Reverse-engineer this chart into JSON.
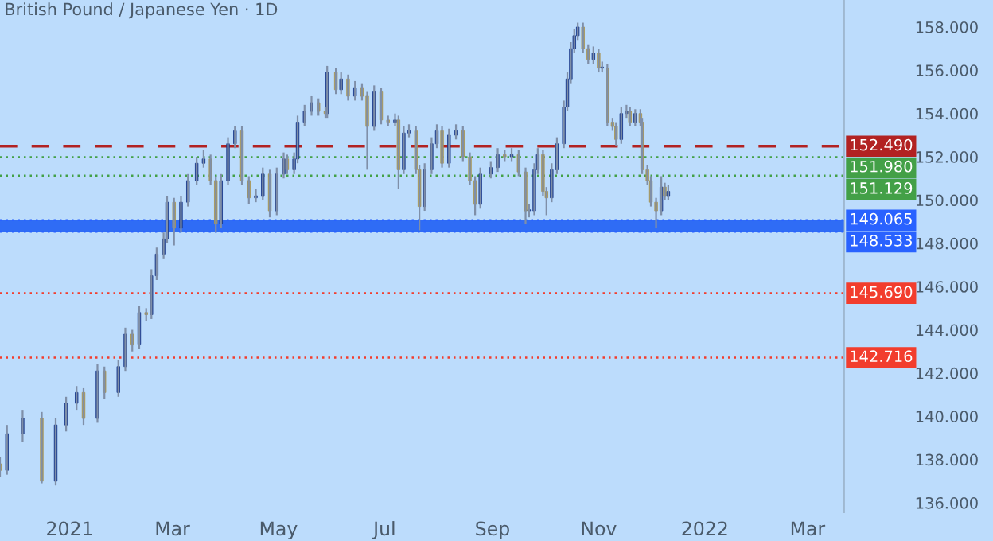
{
  "chart_data": {
    "type": "candlestick",
    "title": "British Pound / Japanese Yen · 1D",
    "x": [
      "2020-11-22",
      "2020-11-26",
      "2020-12-05",
      "2020-12-16",
      "2020-12-24",
      "2020-12-30",
      "2021-01-05",
      "2021-01-09",
      "2021-01-17",
      "2021-01-21",
      "2021-01-29",
      "2021-02-02",
      "2021-02-06",
      "2021-02-10",
      "2021-02-14",
      "2021-02-17",
      "2021-02-20",
      "2021-02-24",
      "2021-02-26",
      "2021-03-02",
      "2021-03-06",
      "2021-03-10",
      "2021-03-15",
      "2021-03-19",
      "2021-03-23",
      "2021-03-26",
      "2021-03-29",
      "2021-04-02",
      "2021-04-06",
      "2021-04-10",
      "2021-04-14",
      "2021-04-18",
      "2021-04-22",
      "2021-04-26",
      "2021-04-30",
      "2021-05-04",
      "2021-05-06",
      "2021-05-10",
      "2021-05-12",
      "2021-05-16",
      "2021-05-20",
      "2021-05-24",
      "2021-05-28",
      "2021-05-29",
      "2021-06-03",
      "2021-06-06",
      "2021-06-10",
      "2021-06-14",
      "2021-06-18",
      "2021-06-21",
      "2021-06-25",
      "2021-06-29",
      "2021-07-03",
      "2021-07-07",
      "2021-07-09",
      "2021-07-12",
      "2021-07-15",
      "2021-07-19",
      "2021-07-21",
      "2021-07-24",
      "2021-07-28",
      "2021-07-31",
      "2021-08-03",
      "2021-08-07",
      "2021-08-11",
      "2021-08-15",
      "2021-08-19",
      "2021-08-22",
      "2021-08-25",
      "2021-08-31",
      "2021-09-04",
      "2021-09-08",
      "2021-09-12",
      "2021-09-16",
      "2021-09-20",
      "2021-09-22",
      "2021-09-25",
      "2021-09-27",
      "2021-09-30",
      "2021-10-02",
      "2021-10-05",
      "2021-10-08",
      "2021-10-12",
      "2021-10-14",
      "2021-10-16",
      "2021-10-18",
      "2021-10-20",
      "2021-10-23",
      "2021-10-26",
      "2021-10-29",
      "2021-11-01",
      "2021-11-03",
      "2021-11-06",
      "2021-11-09",
      "2021-11-11",
      "2021-11-14",
      "2021-11-17",
      "2021-11-19",
      "2021-11-22",
      "2021-11-25",
      "2021-11-26",
      "2021-11-29",
      "2021-12-01",
      "2021-12-04",
      "2021-12-07",
      "2021-12-09",
      "2021-12-11"
    ],
    "ohlc": [
      [
        137.8,
        138.1,
        137.2,
        137.5
      ],
      [
        137.5,
        139.6,
        137.3,
        139.2
      ],
      [
        139.2,
        140.3,
        138.8,
        139.9
      ],
      [
        139.9,
        140.2,
        136.9,
        137.0
      ],
      [
        137.0,
        139.9,
        136.8,
        139.6
      ],
      [
        139.6,
        140.9,
        139.3,
        140.6
      ],
      [
        140.6,
        141.4,
        140.3,
        141.1
      ],
      [
        141.1,
        141.3,
        139.6,
        139.9
      ],
      [
        139.9,
        142.4,
        139.7,
        142.1
      ],
      [
        142.1,
        142.3,
        140.8,
        141.1
      ],
      [
        141.1,
        142.6,
        140.9,
        142.3
      ],
      [
        142.3,
        144.1,
        142.1,
        143.8
      ],
      [
        143.8,
        144.0,
        143.0,
        143.3
      ],
      [
        143.3,
        145.1,
        143.1,
        144.8
      ],
      [
        144.8,
        145.0,
        144.4,
        144.7
      ],
      [
        144.7,
        146.8,
        144.5,
        146.5
      ],
      [
        146.5,
        147.8,
        146.3,
        147.5
      ],
      [
        147.5,
        148.5,
        147.3,
        148.2
      ],
      [
        148.2,
        150.2,
        148.0,
        149.9
      ],
      [
        149.9,
        150.1,
        147.9,
        148.7
      ],
      [
        148.7,
        150.2,
        148.5,
        149.9
      ],
      [
        149.9,
        151.2,
        149.7,
        150.9
      ],
      [
        150.9,
        152.0,
        150.7,
        151.7
      ],
      [
        151.7,
        152.3,
        151.5,
        151.9
      ],
      [
        151.9,
        152.1,
        150.7,
        150.9
      ],
      [
        150.9,
        151.1,
        148.5,
        148.9
      ],
      [
        148.9,
        151.2,
        148.7,
        150.9
      ],
      [
        150.9,
        152.9,
        150.7,
        152.6
      ],
      [
        152.6,
        153.4,
        152.4,
        153.2
      ],
      [
        153.2,
        153.4,
        150.7,
        150.9
      ],
      [
        150.9,
        151.1,
        149.8,
        150.1
      ],
      [
        150.1,
        150.5,
        149.9,
        150.2
      ],
      [
        150.2,
        151.5,
        150.0,
        151.2
      ],
      [
        151.2,
        151.4,
        149.2,
        149.5
      ],
      [
        149.5,
        151.5,
        149.3,
        151.2
      ],
      [
        151.2,
        152.2,
        151.0,
        151.9
      ],
      [
        151.9,
        152.1,
        151.2,
        151.4
      ],
      [
        151.4,
        152.2,
        151.2,
        151.9
      ],
      [
        151.9,
        153.9,
        151.7,
        153.6
      ],
      [
        153.6,
        154.4,
        153.4,
        154.1
      ],
      [
        154.1,
        154.8,
        153.9,
        154.5
      ],
      [
        154.5,
        154.7,
        153.9,
        154.1
      ],
      [
        154.1,
        154.3,
        153.8,
        154.0
      ],
      [
        154.0,
        156.2,
        153.8,
        155.9
      ],
      [
        155.9,
        156.1,
        154.9,
        155.1
      ],
      [
        155.1,
        155.9,
        154.9,
        155.6
      ],
      [
        155.6,
        155.8,
        154.6,
        154.8
      ],
      [
        154.8,
        155.5,
        154.6,
        155.2
      ],
      [
        155.2,
        155.4,
        154.6,
        154.8
      ],
      [
        154.8,
        155.0,
        151.4,
        153.4
      ],
      [
        153.4,
        155.3,
        153.2,
        155.0
      ],
      [
        155.0,
        155.2,
        153.5,
        153.7
      ],
      [
        153.7,
        153.9,
        153.4,
        153.6
      ],
      [
        153.6,
        154.0,
        153.4,
        153.7
      ],
      [
        153.7,
        153.9,
        150.5,
        151.4
      ],
      [
        151.4,
        153.4,
        151.2,
        153.1
      ],
      [
        153.1,
        153.5,
        152.9,
        153.2
      ],
      [
        153.2,
        153.4,
        151.2,
        151.4
      ],
      [
        151.4,
        151.6,
        148.6,
        149.7
      ],
      [
        149.7,
        151.7,
        149.5,
        151.4
      ],
      [
        151.4,
        152.9,
        151.2,
        152.6
      ],
      [
        152.6,
        153.5,
        152.4,
        153.2
      ],
      [
        153.2,
        153.4,
        151.5,
        151.7
      ],
      [
        151.7,
        153.3,
        151.5,
        153.0
      ],
      [
        153.0,
        153.5,
        152.8,
        153.2
      ],
      [
        153.2,
        153.4,
        151.8,
        152.0
      ],
      [
        152.0,
        152.2,
        150.7,
        150.9
      ],
      [
        150.9,
        151.1,
        149.3,
        149.8
      ],
      [
        149.8,
        151.5,
        149.6,
        151.2
      ],
      [
        151.2,
        151.8,
        151.0,
        151.5
      ],
      [
        151.5,
        152.4,
        151.3,
        152.1
      ],
      [
        152.1,
        152.3,
        151.8,
        152.0
      ],
      [
        152.0,
        152.4,
        151.8,
        152.1
      ],
      [
        152.1,
        152.3,
        151.1,
        151.3
      ],
      [
        151.3,
        151.5,
        148.9,
        149.5
      ],
      [
        149.5,
        149.8,
        149.2,
        149.5
      ],
      [
        149.5,
        151.7,
        149.3,
        151.4
      ],
      [
        151.4,
        152.4,
        151.2,
        152.1
      ],
      [
        152.1,
        152.3,
        150.2,
        150.4
      ],
      [
        150.4,
        150.6,
        149.3,
        150.1
      ],
      [
        150.1,
        151.7,
        149.9,
        151.4
      ],
      [
        151.4,
        152.9,
        151.2,
        152.6
      ],
      [
        152.6,
        154.6,
        152.4,
        154.3
      ],
      [
        154.3,
        155.9,
        154.1,
        155.6
      ],
      [
        155.6,
        157.3,
        155.4,
        157.0
      ],
      [
        157.0,
        157.9,
        156.8,
        157.6
      ],
      [
        157.6,
        158.2,
        157.4,
        158.0
      ],
      [
        158.0,
        158.2,
        156.8,
        157.0
      ],
      [
        157.0,
        157.2,
        156.3,
        156.5
      ],
      [
        156.5,
        157.1,
        156.3,
        156.8
      ],
      [
        156.8,
        157.0,
        155.9,
        156.1
      ],
      [
        156.1,
        156.4,
        155.9,
        156.1
      ],
      [
        156.1,
        156.3,
        153.4,
        153.6
      ],
      [
        153.6,
        153.8,
        153.2,
        153.4
      ],
      [
        153.4,
        153.6,
        152.5,
        152.8
      ],
      [
        152.8,
        154.3,
        152.6,
        154.0
      ],
      [
        154.0,
        154.4,
        153.8,
        154.1
      ],
      [
        154.1,
        154.3,
        153.4,
        153.6
      ],
      [
        153.6,
        154.2,
        153.4,
        154.0
      ],
      [
        154.0,
        154.2,
        153.4,
        153.6
      ],
      [
        153.6,
        153.8,
        151.2,
        151.4
      ],
      [
        151.4,
        151.6,
        150.7,
        150.9
      ],
      [
        150.9,
        151.1,
        149.7,
        149.9
      ],
      [
        149.9,
        150.1,
        148.7,
        149.5
      ],
      [
        149.5,
        151.1,
        149.3,
        150.6
      ],
      [
        150.6,
        150.8,
        150.0,
        150.2
      ],
      [
        150.2,
        150.7,
        150.0,
        150.4
      ]
    ],
    "xlim": [
      "2020-11-22",
      "2022-03-22"
    ],
    "xticks": [
      {
        "value": "2021-01-01",
        "label": "2021"
      },
      {
        "value": "2021-03-01",
        "label": "Mar"
      },
      {
        "value": "2021-05-01",
        "label": "May"
      },
      {
        "value": "2021-07-01",
        "label": "Jul"
      },
      {
        "value": "2021-09-01",
        "label": "Sep"
      },
      {
        "value": "2021-11-01",
        "label": "Nov"
      },
      {
        "value": "2022-01-01",
        "label": "2022"
      },
      {
        "value": "2022-03-01",
        "label": "Mar"
      }
    ],
    "ylim": [
      135.56,
      159.25
    ],
    "yticks": [
      {
        "value": 136,
        "label": "136.000"
      },
      {
        "value": 138,
        "label": "138.000"
      },
      {
        "value": 140,
        "label": "140.000"
      },
      {
        "value": 142,
        "label": "142.000"
      },
      {
        "value": 144,
        "label": "144.000"
      },
      {
        "value": 146,
        "label": "146.000"
      },
      {
        "value": 148,
        "label": "148.000"
      },
      {
        "value": 150,
        "label": "150.000"
      },
      {
        "value": 152,
        "label": "152.000"
      },
      {
        "value": 154,
        "label": "154.000"
      },
      {
        "value": 156,
        "label": "156.000"
      },
      {
        "value": 158,
        "label": "158.000"
      }
    ],
    "ref_lines": [
      {
        "axis": "y",
        "value": 152.49,
        "label": "152.490",
        "color": "#b22222",
        "line_style": "dashed"
      },
      {
        "axis": "y",
        "value": 151.98,
        "label": "151.980",
        "color": "#43a047",
        "line_style": "dotted"
      },
      {
        "axis": "y",
        "value": 151.129,
        "label": "151.129",
        "color": "#43a047",
        "line_style": "dotted"
      },
      {
        "axis": "y",
        "value": 149.065,
        "label": "149.065",
        "color": "#2962ff",
        "line_style": "dotted"
      },
      {
        "axis": "y",
        "value": 148.533,
        "label": "148.533",
        "color": "#2962ff",
        "line_style": "dotted"
      },
      {
        "axis": "y",
        "value": 145.69,
        "label": "145.690",
        "color": "#f23d2d",
        "line_style": "dotted"
      },
      {
        "axis": "y",
        "value": 142.716,
        "label": "142.716",
        "color": "#f23d2d",
        "line_style": "dotted"
      }
    ],
    "bands": [
      {
        "axis": "y",
        "from": 148.533,
        "to": 149.065,
        "color": "#2f6cf5"
      }
    ],
    "grid": false
  }
}
